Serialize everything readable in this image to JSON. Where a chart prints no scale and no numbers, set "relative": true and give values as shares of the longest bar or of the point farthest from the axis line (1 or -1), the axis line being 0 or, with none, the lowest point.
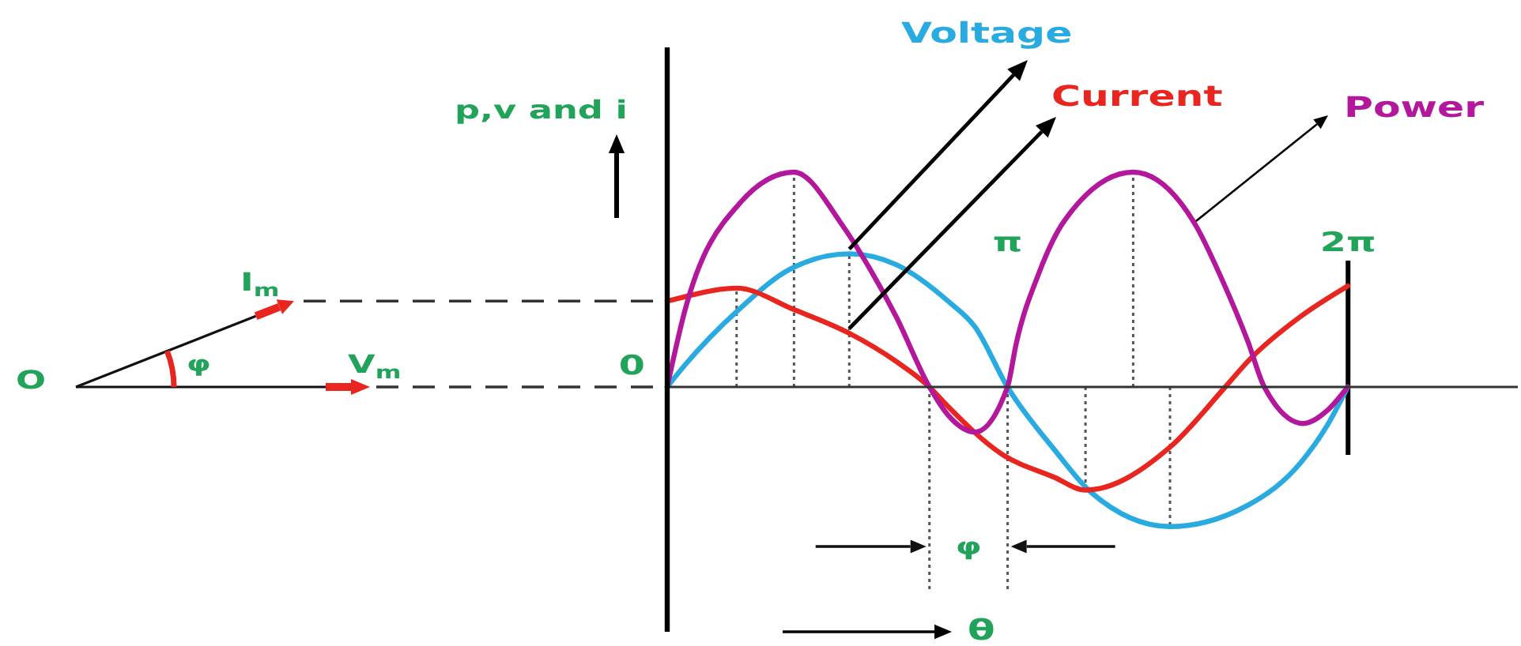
{
  "chart_data": {
    "type": "line",
    "relative": true,
    "xlabel": "θ",
    "ylabel": "p,v and i",
    "xlim": [
      0,
      7.85
    ],
    "xticks": [
      {
        "value": 3.1416,
        "label": "π"
      },
      {
        "value": 6.2832,
        "label": "2π"
      }
    ],
    "series": [
      {
        "name": "Voltage",
        "color": "#29abe2",
        "x": [
          0,
          0.16,
          0.66,
          1.14,
          1.68,
          2.11,
          2.59,
          2.84,
          3.14,
          3.57,
          3.91,
          4.64,
          5.36,
          5.85,
          6.09,
          6.28
        ],
        "values": [
          0,
          0.1,
          0.36,
          0.55,
          0.62,
          0.57,
          0.4,
          0.28,
          0,
          -0.29,
          -0.49,
          -0.65,
          -0.55,
          -0.35,
          -0.18,
          0
        ]
      },
      {
        "name": "Current",
        "color": "#e8251f",
        "x": [
          0,
          0.16,
          0.64,
          1.17,
          1.68,
          2.11,
          2.42,
          2.59,
          3.08,
          3.57,
          3.86,
          4.64,
          5.15,
          5.36,
          5.85,
          6.28
        ],
        "values": [
          0.4,
          0.42,
          0.46,
          0.36,
          0.25,
          0.12,
          0,
          -0.09,
          -0.31,
          -0.42,
          -0.48,
          -0.28,
          0,
          0.12,
          0.33,
          0.47
        ]
      },
      {
        "name": "Power",
        "color": "#b3179c",
        "x": [
          0,
          0.16,
          0.66,
          1.17,
          1.62,
          1.87,
          2.11,
          2.42,
          2.59,
          2.84,
          3.14,
          3.22,
          3.43,
          3.66,
          4.3,
          4.88,
          5.12,
          5.36,
          5.51,
          5.87,
          6.09,
          6.28
        ],
        "values": [
          0,
          0.35,
          0.85,
          1,
          0.75,
          0.55,
          0.33,
          0,
          -0.13,
          -0.21,
          0,
          0.2,
          0.53,
          0.77,
          1,
          0.75,
          0.5,
          0.21,
          0,
          -0.17,
          -0.11,
          0
        ]
      }
    ],
    "ref_lines": [
      {
        "axis": "x",
        "value": 0.64,
        "color": "#555555",
        "line_style": "dotted"
      },
      {
        "axis": "x",
        "value": 1.17,
        "color": "#555555",
        "line_style": "dotted"
      },
      {
        "axis": "x",
        "value": 1.68,
        "color": "#555555",
        "line_style": "dotted"
      },
      {
        "axis": "x",
        "value": 3.86,
        "color": "#555555",
        "line_style": "dotted"
      },
      {
        "axis": "x",
        "value": 4.3,
        "color": "#555555",
        "line_style": "dotted"
      },
      {
        "axis": "x",
        "value": 4.64,
        "color": "#555555",
        "line_style": "dotted"
      },
      {
        "axis": "x",
        "value": 2.42,
        "color": "#555555",
        "line_style": "dotted"
      },
      {
        "axis": "x",
        "value": 3.1416,
        "color": "#555555",
        "line_style": "dotted"
      },
      {
        "axis": "x",
        "value": 6.2832,
        "color": "#000000",
        "line_style": "solid"
      }
    ],
    "annotations": [
      "O",
      "I$_{m}$",
      "V$_{m}$",
      "φ",
      {
        "text": "0",
        "x": 0,
        "y": 0
      },
      "φ"
    ]
  }
}
